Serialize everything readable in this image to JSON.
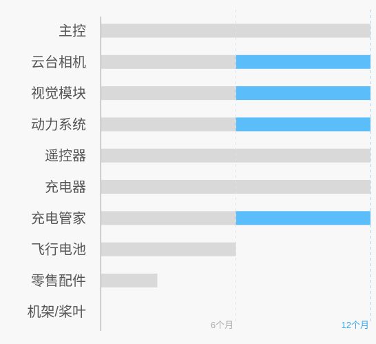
{
  "chart_data": {
    "type": "bar",
    "orientation": "horizontal",
    "stacked": true,
    "categories": [
      "主控",
      "云台相机",
      "视觉模块",
      "动力系统",
      "遥控器",
      "充电器",
      "充电管家",
      "飞行电池",
      "零售配件",
      "机架/桨叶"
    ],
    "series": [
      {
        "values": [
          12,
          6,
          6,
          6,
          12,
          12,
          6,
          6,
          2.5,
          0
        ],
        "color": "#d9d9d9"
      },
      {
        "values": [
          0,
          6,
          6,
          6,
          0,
          0,
          6,
          0,
          0,
          0
        ],
        "color": "#5bbdfa"
      }
    ],
    "xlim": [
      0,
      12
    ],
    "xticks": [
      {
        "value": 6,
        "label": "6个月",
        "color": "#aaaaaa",
        "line_color": "#d6e4ef"
      },
      {
        "value": 12,
        "label": "12个月",
        "color": "#36a8f0",
        "line_color": "#9ed3f5"
      }
    ],
    "grid_style": "dashed",
    "legend": "none"
  }
}
